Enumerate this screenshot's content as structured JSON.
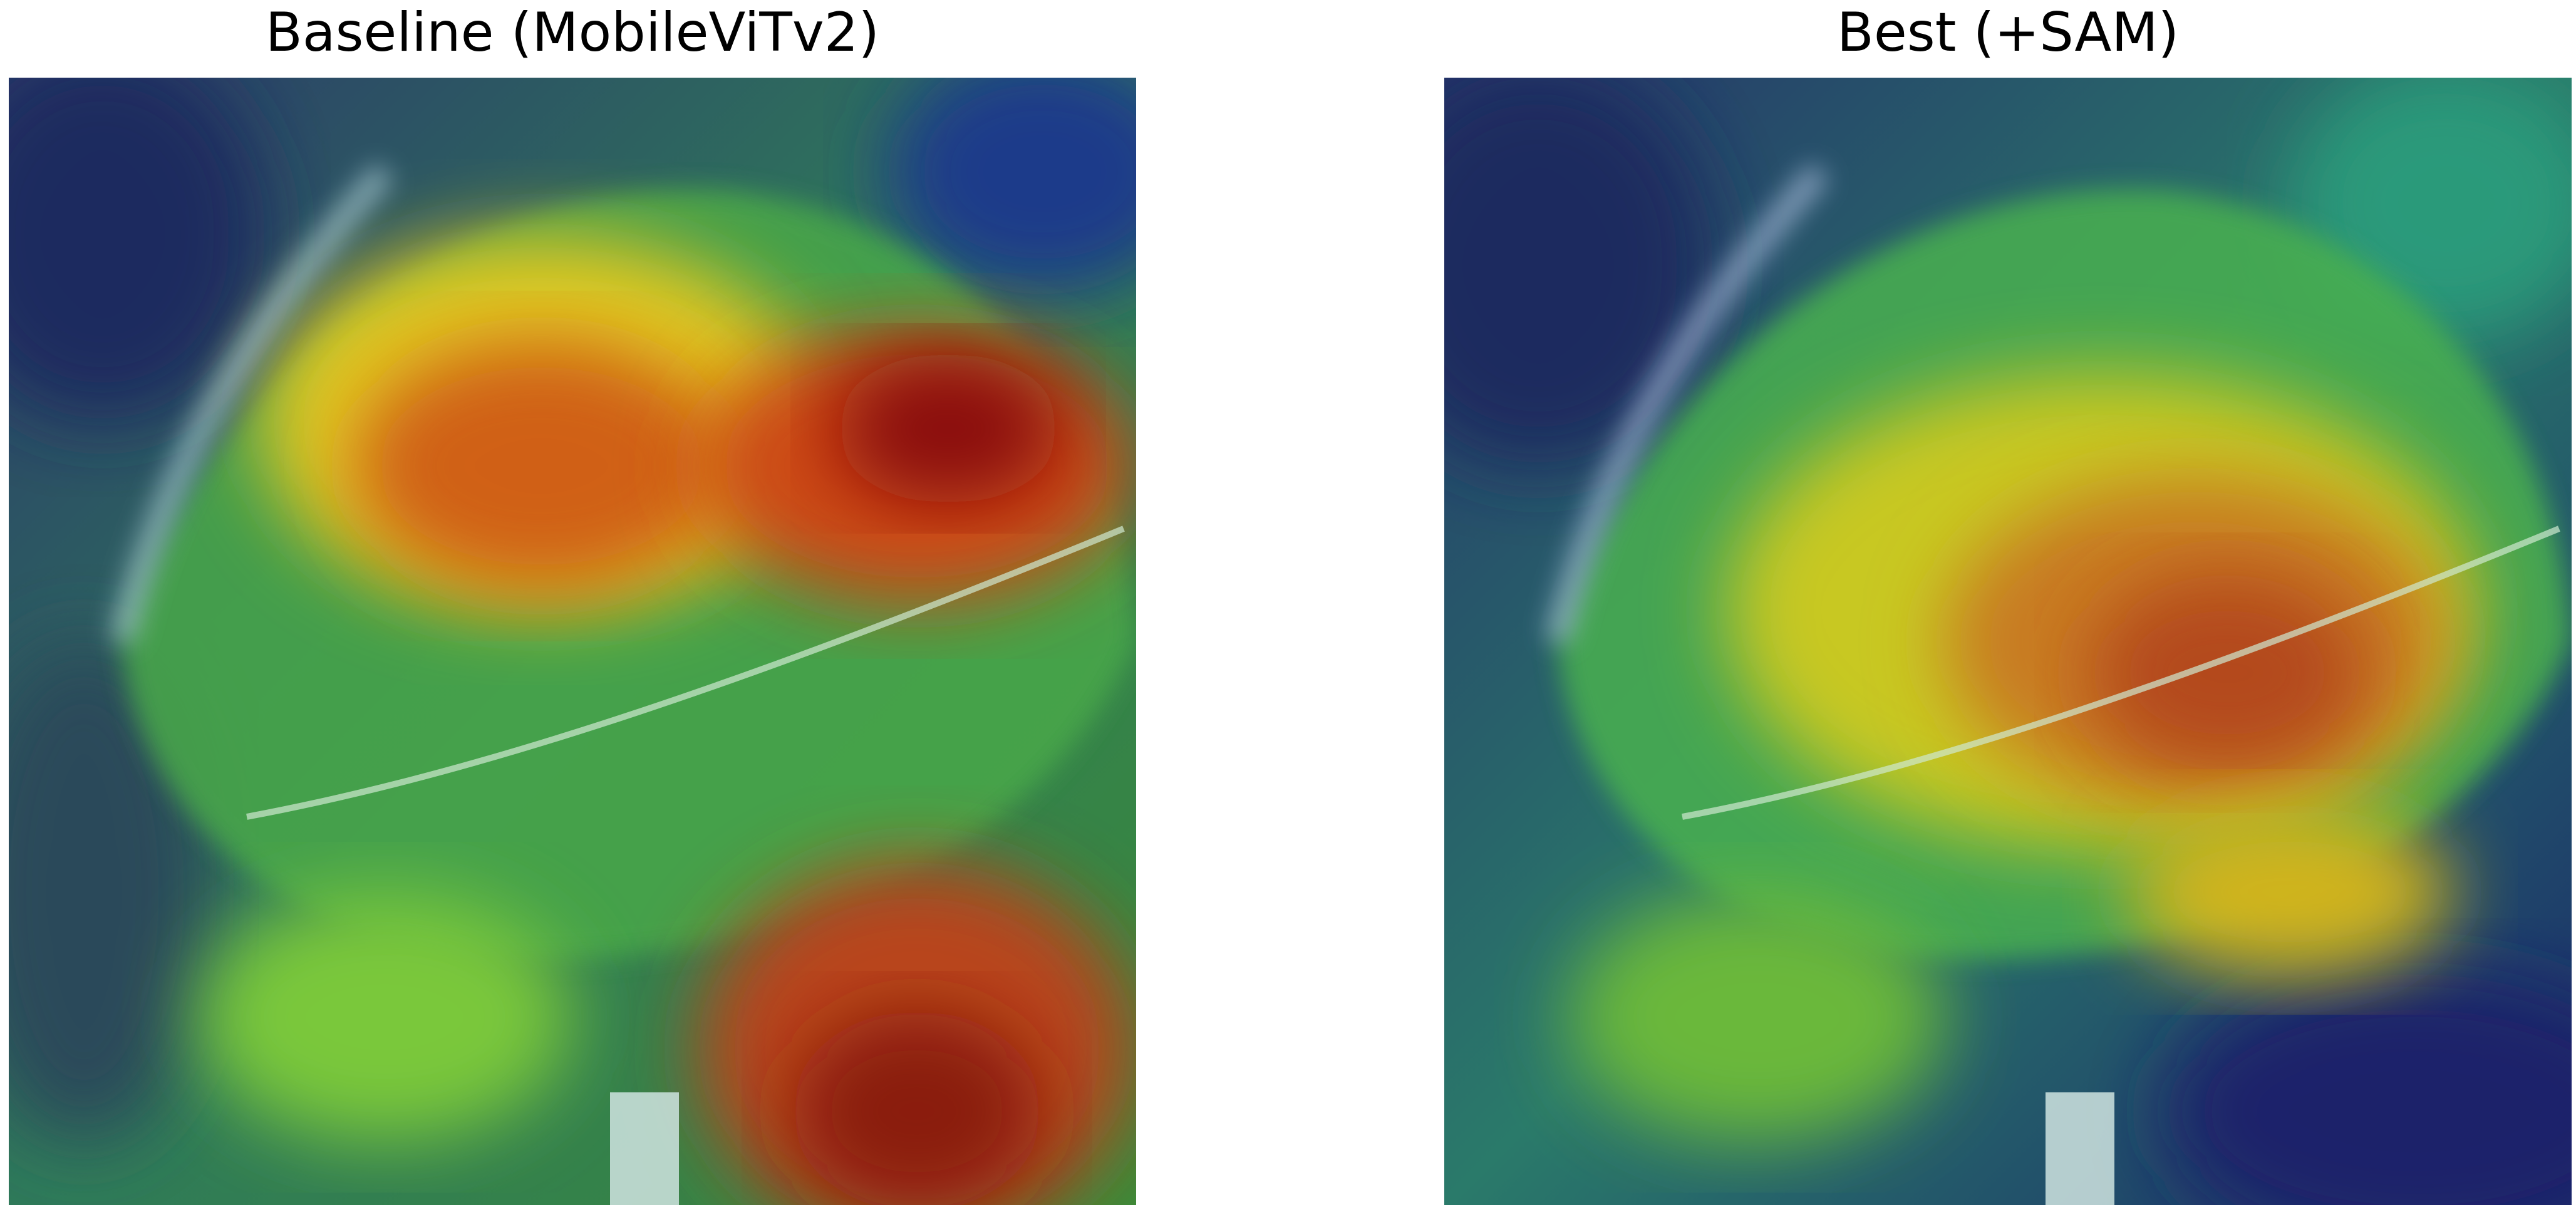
{
  "figure": {
    "panels": [
      {
        "id": "baseline",
        "title": "Baseline (MobileViTv2)",
        "overlay": "grad-cam heatmap on leaf image",
        "hot_regions": [
          "upper-center leaf lesions",
          "upper-right lobe",
          "bottom-center background"
        ],
        "colormap": "jet"
      },
      {
        "id": "best",
        "title": "Best (+SAM)",
        "overlay": "grad-cam heatmap on leaf image",
        "hot_regions": [
          "center-right leaf body"
        ],
        "colormap": "jet"
      }
    ],
    "colors": {
      "cold": "#1a2a7a",
      "cool": "#2e8a7a",
      "mid": "#6fc43c",
      "warm": "#e0d21e",
      "hot": "#d2521a",
      "hottest": "#8a0d0d"
    }
  }
}
